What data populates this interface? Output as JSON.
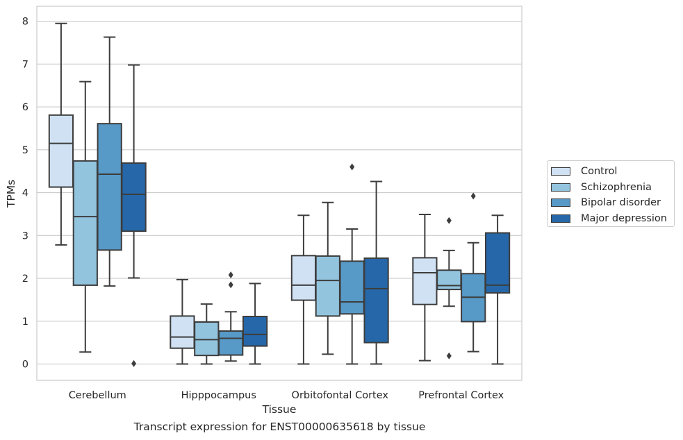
{
  "caption": "Transcript expression for ENST00000635618 by tissue",
  "chart_data": {
    "type": "box",
    "xlabel": "Tissue",
    "ylabel": "TPMs",
    "ylim": [
      -0.38,
      8.35
    ],
    "yticks": [
      0,
      1,
      2,
      3,
      4,
      5,
      6,
      7,
      8
    ],
    "grid": true,
    "legend_position": "right",
    "categories": [
      "Cerebellum",
      "Hipppocampus",
      "Orbitofontal Cortex",
      "Prefrontal Cortex"
    ],
    "series": [
      {
        "name": "Control",
        "color": "#cfe1f2",
        "boxes": [
          {
            "whislo": 2.78,
            "q1": 4.13,
            "med": 5.15,
            "q3": 5.81,
            "whishi": 7.95,
            "fliers": []
          },
          {
            "whislo": 0.0,
            "q1": 0.37,
            "med": 0.63,
            "q3": 1.12,
            "whishi": 1.97,
            "fliers": []
          },
          {
            "whislo": 0.0,
            "q1": 1.49,
            "med": 1.84,
            "q3": 2.53,
            "whishi": 3.47,
            "fliers": []
          },
          {
            "whislo": 0.08,
            "q1": 1.39,
            "med": 2.13,
            "q3": 2.48,
            "whishi": 3.49,
            "fliers": []
          }
        ]
      },
      {
        "name": "Schizophrenia",
        "color": "#93c4de",
        "boxes": [
          {
            "whislo": 0.28,
            "q1": 1.84,
            "med": 3.44,
            "q3": 4.74,
            "whishi": 6.59,
            "fliers": []
          },
          {
            "whislo": 0.0,
            "q1": 0.2,
            "med": 0.57,
            "q3": 0.98,
            "whishi": 1.4,
            "fliers": []
          },
          {
            "whislo": 0.23,
            "q1": 1.12,
            "med": 1.95,
            "q3": 2.52,
            "whishi": 3.77,
            "fliers": []
          },
          {
            "whislo": 1.35,
            "q1": 1.74,
            "med": 1.83,
            "q3": 2.19,
            "whishi": 2.65,
            "fliers": [
              0.19,
              3.35
            ]
          }
        ]
      },
      {
        "name": "Bipolar disorder",
        "color": "#5799c7",
        "boxes": [
          {
            "whislo": 1.82,
            "q1": 2.66,
            "med": 4.43,
            "q3": 5.61,
            "whishi": 7.63,
            "fliers": []
          },
          {
            "whislo": 0.07,
            "q1": 0.21,
            "med": 0.6,
            "q3": 0.77,
            "whishi": 1.22,
            "fliers": [
              1.85,
              2.08
            ]
          },
          {
            "whislo": 0.0,
            "q1": 1.17,
            "med": 1.45,
            "q3": 2.4,
            "whishi": 3.15,
            "fliers": [
              4.6
            ]
          },
          {
            "whislo": 0.29,
            "q1": 0.99,
            "med": 1.56,
            "q3": 2.11,
            "whishi": 2.83,
            "fliers": [
              3.92
            ]
          }
        ]
      },
      {
        "name": "Major depression",
        "color": "#2567a8",
        "boxes": [
          {
            "whislo": 2.01,
            "q1": 3.1,
            "med": 3.96,
            "q3": 4.69,
            "whishi": 6.98,
            "fliers": [
              0.01
            ]
          },
          {
            "whislo": 0.0,
            "q1": 0.42,
            "med": 0.69,
            "q3": 1.11,
            "whishi": 1.88,
            "fliers": []
          },
          {
            "whislo": 0.0,
            "q1": 0.5,
            "med": 1.76,
            "q3": 2.47,
            "whishi": 4.26,
            "fliers": []
          },
          {
            "whislo": 0.0,
            "q1": 1.66,
            "med": 1.84,
            "q3": 3.06,
            "whishi": 3.47,
            "fliers": []
          }
        ]
      }
    ]
  }
}
